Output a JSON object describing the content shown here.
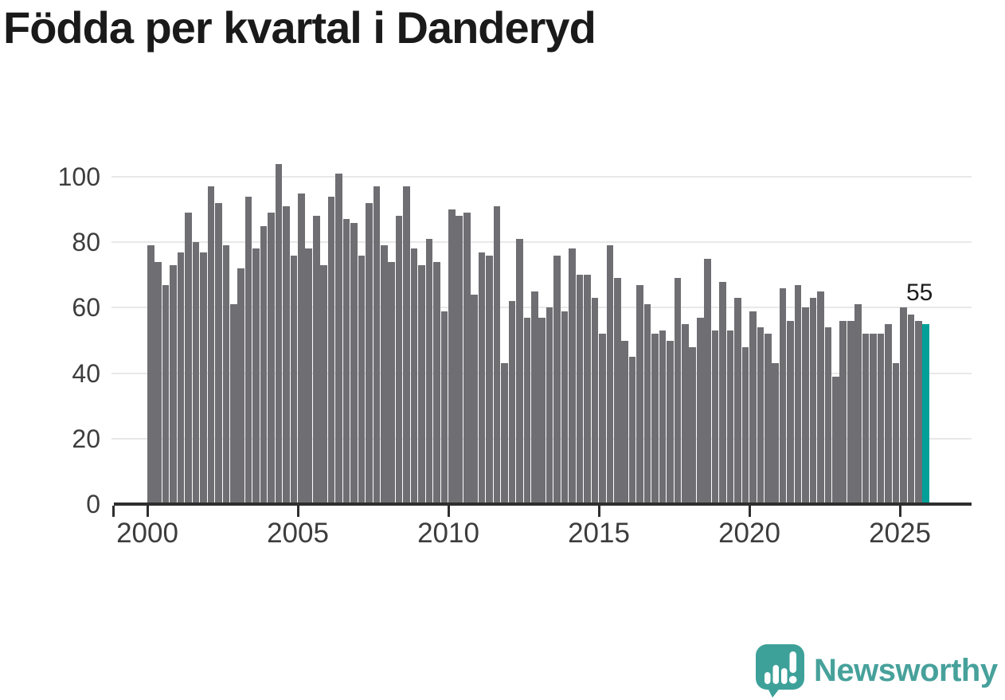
{
  "title": "Födda per kvartal i Danderyd",
  "annotation": {
    "last_value_label": "55"
  },
  "footer": {
    "brand": "Newsworthy"
  },
  "colors": {
    "bar": "#6e6e73",
    "highlight": "#00a099",
    "title_text": "#1a1a1a",
    "axis_text": "#3d3d3d",
    "gridline": "#e8e8e8",
    "axis_line": "#2e2e2e",
    "logo_teal": "#47a19b"
  },
  "chart_data": {
    "type": "bar",
    "title": "Födda per kvartal i Danderyd",
    "xlabel": "",
    "ylabel": "",
    "grid": "horizontal",
    "legend": "none",
    "ylim": [
      0,
      110
    ],
    "y_tick_labels": [
      "0",
      "20",
      "40",
      "60",
      "80",
      "100"
    ],
    "x_tick_labels": [
      "2000",
      "2005",
      "2010",
      "2015",
      "2020",
      "2025"
    ],
    "highlight_index": 103,
    "highlight_value": 55,
    "categories": [
      "2000-Q1",
      "2000-Q2",
      "2000-Q3",
      "2000-Q4",
      "2001-Q1",
      "2001-Q2",
      "2001-Q3",
      "2001-Q4",
      "2002-Q1",
      "2002-Q2",
      "2002-Q3",
      "2002-Q4",
      "2003-Q1",
      "2003-Q2",
      "2003-Q3",
      "2003-Q4",
      "2004-Q1",
      "2004-Q2",
      "2004-Q3",
      "2004-Q4",
      "2005-Q1",
      "2005-Q2",
      "2005-Q3",
      "2005-Q4",
      "2006-Q1",
      "2006-Q2",
      "2006-Q3",
      "2006-Q4",
      "2007-Q1",
      "2007-Q2",
      "2007-Q3",
      "2007-Q4",
      "2008-Q1",
      "2008-Q2",
      "2008-Q3",
      "2008-Q4",
      "2009-Q1",
      "2009-Q2",
      "2009-Q3",
      "2009-Q4",
      "2010-Q1",
      "2010-Q2",
      "2010-Q3",
      "2010-Q4",
      "2011-Q1",
      "2011-Q2",
      "2011-Q3",
      "2011-Q4",
      "2012-Q1",
      "2012-Q2",
      "2012-Q3",
      "2012-Q4",
      "2013-Q1",
      "2013-Q2",
      "2013-Q3",
      "2013-Q4",
      "2014-Q1",
      "2014-Q2",
      "2014-Q3",
      "2014-Q4",
      "2015-Q1",
      "2015-Q2",
      "2015-Q3",
      "2015-Q4",
      "2016-Q1",
      "2016-Q2",
      "2016-Q3",
      "2016-Q4",
      "2017-Q1",
      "2017-Q2",
      "2017-Q3",
      "2017-Q4",
      "2018-Q1",
      "2018-Q2",
      "2018-Q3",
      "2018-Q4",
      "2019-Q1",
      "2019-Q2",
      "2019-Q3",
      "2019-Q4",
      "2020-Q1",
      "2020-Q2",
      "2020-Q3",
      "2020-Q4",
      "2021-Q1",
      "2021-Q2",
      "2021-Q3",
      "2021-Q4",
      "2022-Q1",
      "2022-Q2",
      "2022-Q3",
      "2022-Q4",
      "2023-Q1",
      "2023-Q2",
      "2023-Q3",
      "2023-Q4",
      "2024-Q1",
      "2024-Q2",
      "2024-Q3",
      "2024-Q4",
      "2025-Q1",
      "2025-Q2",
      "2025-Q3",
      "2025-Q4"
    ],
    "values": [
      79,
      74,
      67,
      73,
      77,
      89,
      80,
      77,
      97,
      92,
      79,
      61,
      72,
      94,
      78,
      85,
      89,
      104,
      91,
      76,
      95,
      78,
      88,
      73,
      94,
      101,
      87,
      86,
      76,
      92,
      97,
      79,
      74,
      88,
      97,
      78,
      73,
      81,
      74,
      59,
      90,
      88,
      89,
      64,
      77,
      76,
      91,
      43,
      62,
      81,
      57,
      65,
      57,
      60,
      76,
      59,
      78,
      70,
      70,
      63,
      52,
      79,
      69,
      50,
      45,
      67,
      61,
      52,
      53,
      50,
      69,
      55,
      48,
      57,
      75,
      53,
      68,
      53,
      63,
      48,
      59,
      54,
      52,
      43,
      66,
      56,
      67,
      60,
      63,
      65,
      54,
      39,
      56,
      56,
      61,
      52,
      52,
      52,
      55,
      43,
      60,
      58,
      56,
      55
    ]
  }
}
